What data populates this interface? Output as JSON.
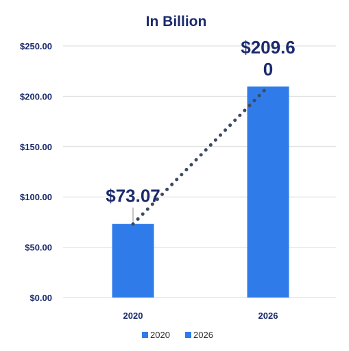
{
  "chart_data": {
    "type": "bar",
    "title": "In Billion",
    "categories": [
      "2020",
      "2026"
    ],
    "values": [
      73.07,
      209.6
    ],
    "data_labels": [
      "$73.07",
      "$209.60"
    ],
    "ylim": [
      0,
      250
    ],
    "yticks": [
      {
        "value": 0,
        "label": "$0.00"
      },
      {
        "value": 50,
        "label": "$50.00"
      },
      {
        "value": 100,
        "label": "$100.00"
      },
      {
        "value": 150,
        "label": "$150.00"
      },
      {
        "value": 200,
        "label": "$200.00"
      },
      {
        "value": 250,
        "label": "$250.00"
      }
    ],
    "grid": true,
    "trendline": {
      "style": "dotted",
      "color": "#3d4a5e"
    },
    "bar_color": "#2f7bea",
    "legend": {
      "placement": "bottom",
      "entries": [
        {
          "label": "2020",
          "color": "#2f7bea"
        },
        {
          "label": "2026",
          "color": "#2f7bea"
        }
      ]
    }
  }
}
